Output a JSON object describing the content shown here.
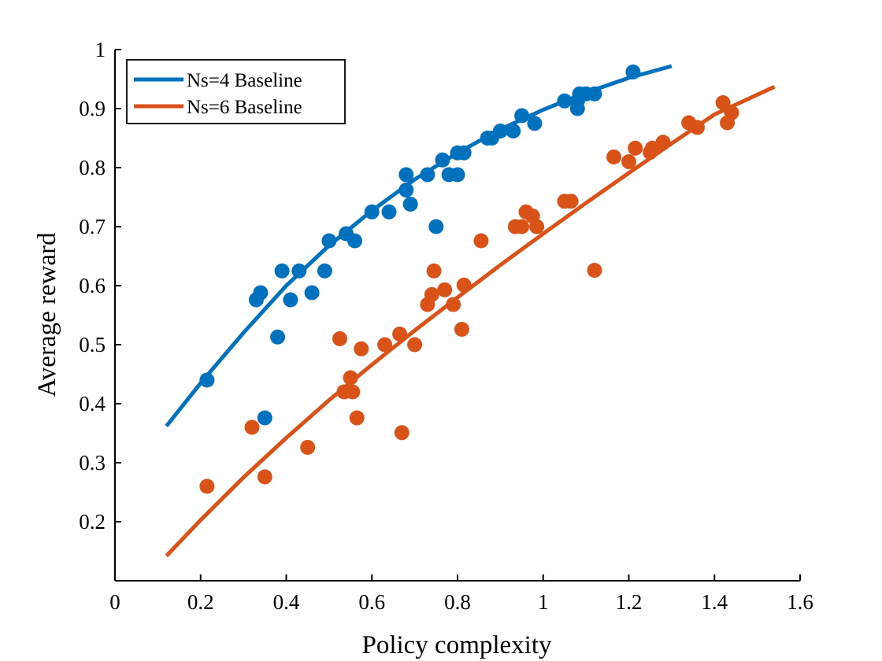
{
  "chart_data": {
    "type": "scatter",
    "xlabel": "Policy complexity",
    "ylabel": "Average reward",
    "xlim": [
      0,
      1.6
    ],
    "ylim": [
      0.1,
      1.0
    ],
    "xticks": [
      0,
      0.2,
      0.4,
      0.6,
      0.8,
      1,
      1.2,
      1.4,
      1.6
    ],
    "yticks": [
      0.2,
      0.3,
      0.4,
      0.5,
      0.6,
      0.7,
      0.8,
      0.9,
      1
    ],
    "xtick_labels": [
      "0",
      "0.2",
      "0.4",
      "0.6",
      "0.8",
      "1",
      "1.2",
      "1.4",
      "1.6"
    ],
    "ytick_labels": [
      "0.2",
      "0.3",
      "0.4",
      "0.5",
      "0.6",
      "0.7",
      "0.8",
      "0.9",
      "1"
    ],
    "legend_position": "top-left",
    "grid": false,
    "series": [
      {
        "name": "Ns=4 Baseline",
        "color": "#0072BD",
        "points": [
          [
            0.215,
            0.44
          ],
          [
            0.33,
            0.576
          ],
          [
            0.34,
            0.588
          ],
          [
            0.35,
            0.376
          ],
          [
            0.38,
            0.513
          ],
          [
            0.39,
            0.625
          ],
          [
            0.41,
            0.576
          ],
          [
            0.43,
            0.625
          ],
          [
            0.46,
            0.588
          ],
          [
            0.49,
            0.625
          ],
          [
            0.5,
            0.676
          ],
          [
            0.54,
            0.688
          ],
          [
            0.56,
            0.676
          ],
          [
            0.6,
            0.725
          ],
          [
            0.64,
            0.725
          ],
          [
            0.68,
            0.762
          ],
          [
            0.68,
            0.788
          ],
          [
            0.69,
            0.738
          ],
          [
            0.73,
            0.788
          ],
          [
            0.75,
            0.7
          ],
          [
            0.765,
            0.813
          ],
          [
            0.78,
            0.788
          ],
          [
            0.8,
            0.788
          ],
          [
            0.8,
            0.825
          ],
          [
            0.815,
            0.825
          ],
          [
            0.87,
            0.85
          ],
          [
            0.88,
            0.85
          ],
          [
            0.9,
            0.862
          ],
          [
            0.93,
            0.862
          ],
          [
            0.95,
            0.888
          ],
          [
            0.98,
            0.875
          ],
          [
            1.05,
            0.913
          ],
          [
            1.08,
            0.913
          ],
          [
            1.08,
            0.9
          ],
          [
            1.085,
            0.925
          ],
          [
            1.1,
            0.925
          ],
          [
            1.12,
            0.925
          ],
          [
            1.21,
            0.962
          ]
        ],
        "fit": [
          [
            0.12,
            0.362
          ],
          [
            0.2,
            0.435
          ],
          [
            0.3,
            0.52
          ],
          [
            0.4,
            0.6
          ],
          [
            0.5,
            0.668
          ],
          [
            0.6,
            0.727
          ],
          [
            0.7,
            0.78
          ],
          [
            0.8,
            0.825
          ],
          [
            0.9,
            0.865
          ],
          [
            1.0,
            0.898
          ],
          [
            1.1,
            0.927
          ],
          [
            1.2,
            0.952
          ],
          [
            1.3,
            0.972
          ]
        ]
      },
      {
        "name": "Ns=6 Baseline",
        "color": "#D95319",
        "points": [
          [
            0.215,
            0.26
          ],
          [
            0.32,
            0.36
          ],
          [
            0.35,
            0.276
          ],
          [
            0.45,
            0.326
          ],
          [
            0.525,
            0.51
          ],
          [
            0.535,
            0.42
          ],
          [
            0.55,
            0.444
          ],
          [
            0.555,
            0.42
          ],
          [
            0.565,
            0.376
          ],
          [
            0.575,
            0.493
          ],
          [
            0.63,
            0.5
          ],
          [
            0.665,
            0.518
          ],
          [
            0.67,
            0.351
          ],
          [
            0.7,
            0.5
          ],
          [
            0.73,
            0.568
          ],
          [
            0.74,
            0.585
          ],
          [
            0.745,
            0.625
          ],
          [
            0.77,
            0.593
          ],
          [
            0.79,
            0.568
          ],
          [
            0.81,
            0.526
          ],
          [
            0.815,
            0.601
          ],
          [
            0.855,
            0.676
          ],
          [
            0.935,
            0.7
          ],
          [
            0.95,
            0.7
          ],
          [
            0.96,
            0.725
          ],
          [
            0.975,
            0.718
          ],
          [
            0.985,
            0.7
          ],
          [
            1.05,
            0.743
          ],
          [
            1.065,
            0.743
          ],
          [
            1.12,
            0.626
          ],
          [
            1.165,
            0.818
          ],
          [
            1.2,
            0.81
          ],
          [
            1.215,
            0.833
          ],
          [
            1.25,
            0.826
          ],
          [
            1.255,
            0.833
          ],
          [
            1.28,
            0.843
          ],
          [
            1.34,
            0.876
          ],
          [
            1.36,
            0.868
          ],
          [
            1.42,
            0.91
          ],
          [
            1.43,
            0.876
          ],
          [
            1.44,
            0.893
          ]
        ],
        "fit": [
          [
            0.12,
            0.142
          ],
          [
            0.2,
            0.203
          ],
          [
            0.3,
            0.275
          ],
          [
            0.4,
            0.342
          ],
          [
            0.5,
            0.406
          ],
          [
            0.6,
            0.466
          ],
          [
            0.7,
            0.524
          ],
          [
            0.8,
            0.58
          ],
          [
            0.9,
            0.635
          ],
          [
            1.0,
            0.688
          ],
          [
            1.1,
            0.74
          ],
          [
            1.2,
            0.791
          ],
          [
            1.3,
            0.841
          ],
          [
            1.4,
            0.89
          ],
          [
            1.54,
            0.937
          ]
        ]
      }
    ]
  }
}
